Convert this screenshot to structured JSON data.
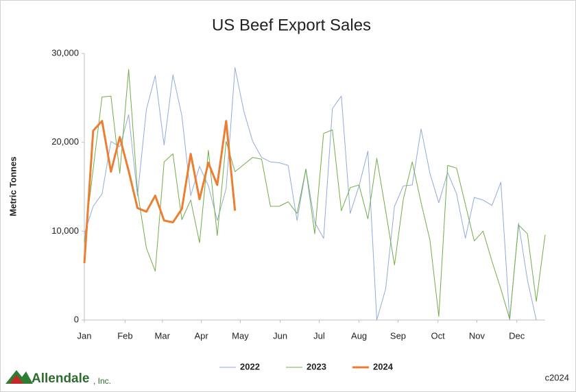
{
  "chart_data": {
    "type": "line",
    "title": "US Beef Export Sales",
    "y_label": "Metric Tonnes",
    "x": [
      1,
      2,
      3,
      4,
      5,
      6,
      7,
      8,
      9,
      10,
      11,
      12,
      13,
      14,
      15,
      16,
      17,
      18,
      19,
      20,
      21,
      22,
      23,
      24,
      25,
      26,
      27,
      28,
      29,
      30,
      31,
      32,
      33,
      34,
      35,
      36,
      37,
      38,
      39,
      40,
      41,
      42,
      43,
      44,
      45,
      46,
      47,
      48,
      49,
      50,
      51,
      52,
      53
    ],
    "xlim": [
      1,
      53
    ],
    "xticks": [
      {
        "value": 1,
        "label": "Jan"
      },
      {
        "value": 5.6,
        "label": "Feb"
      },
      {
        "value": 9.8,
        "label": "Mar"
      },
      {
        "value": 14.2,
        "label": "Apr"
      },
      {
        "value": 18.6,
        "label": "May"
      },
      {
        "value": 23.1,
        "label": "Jun"
      },
      {
        "value": 27.5,
        "label": "Jul"
      },
      {
        "value": 32,
        "label": "Aug"
      },
      {
        "value": 36.4,
        "label": "Sep"
      },
      {
        "value": 40.9,
        "label": "Oct"
      },
      {
        "value": 45.3,
        "label": "Nov"
      },
      {
        "value": 49.8,
        "label": "Dec"
      }
    ],
    "ylim": [
      0,
      30000
    ],
    "yticks": [
      0,
      {
        "value": 10000,
        "label": "10,000"
      },
      {
        "value": 20000,
        "label": "20,000"
      },
      {
        "value": 30000,
        "label": "30,000"
      }
    ],
    "grid": false,
    "legend": "bottom",
    "series": [
      {
        "name": "2022",
        "color": "#8faadc",
        "width": 1,
        "values": [
          9700,
          12800,
          14200,
          20100,
          19500,
          23100,
          14000,
          23700,
          27500,
          19700,
          27600,
          23000,
          14000,
          17300,
          15100,
          11200,
          14800,
          28400,
          23500,
          20100,
          18300,
          17800,
          17700,
          17400,
          11200,
          17000,
          11000,
          9200,
          23800,
          25200,
          12000,
          15100,
          19000,
          0,
          3500,
          12800,
          15100,
          15200,
          21500,
          16500,
          13200,
          16600,
          14200,
          9200,
          13800,
          13500,
          12900,
          15500,
          0,
          10900,
          4500,
          0,
          null
        ]
      },
      {
        "name": "2023",
        "color": "#70ad47",
        "width": 1,
        "values": [
          8800,
          17000,
          25100,
          25200,
          16500,
          28200,
          14500,
          8100,
          5500,
          17800,
          18700,
          11300,
          13500,
          8700,
          19100,
          9500,
          20100,
          16700,
          17500,
          18300,
          18100,
          12800,
          12800,
          13300,
          12000,
          17000,
          9700,
          21000,
          21400,
          12300,
          14900,
          15200,
          11400,
          18200,
          12300,
          6200,
          13600,
          17800,
          13200,
          9000,
          400,
          17400,
          17100,
          13000,
          8900,
          10000,
          6600,
          3500,
          100,
          10700,
          9700,
          2100,
          9600
        ]
      },
      {
        "name": "2024",
        "color": "#ed7d31",
        "width": 3,
        "values": [
          6400,
          21300,
          22400,
          16700,
          20600,
          16800,
          12600,
          12200,
          14000,
          11200,
          11000,
          12500,
          18700,
          13600,
          17700,
          15200,
          22400,
          12300,
          null,
          null,
          null,
          null,
          null,
          null,
          null,
          null,
          null,
          null,
          null,
          null,
          null,
          null,
          null,
          null,
          null,
          null,
          null,
          null,
          null,
          null,
          null,
          null,
          null,
          null,
          null,
          null,
          null,
          null,
          null,
          null,
          null,
          null,
          null
        ]
      }
    ],
    "logo": "Allendale",
    "logo_suffix": ", Inc.",
    "note": "c2024"
  }
}
